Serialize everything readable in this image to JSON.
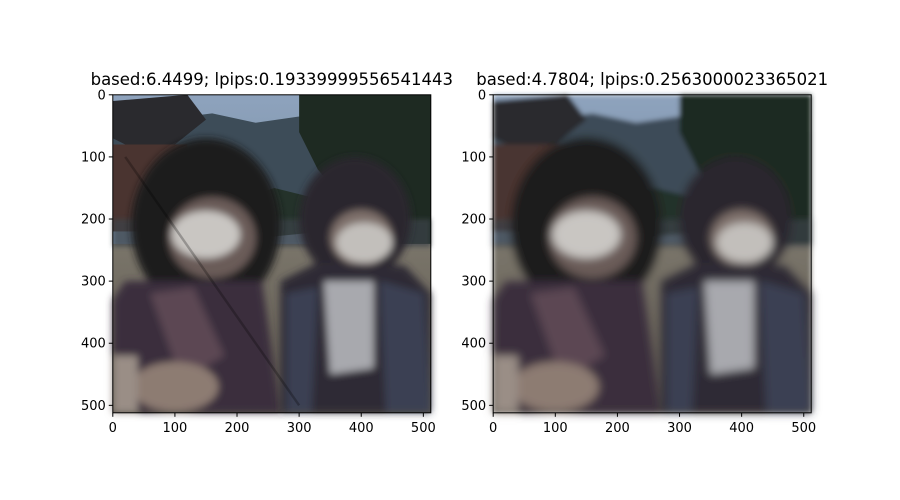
{
  "chart_data": [
    {
      "type": "image",
      "title": "based:6.4499; lpips:0.19339999556541443",
      "xlim": [
        0,
        512
      ],
      "ylim": [
        512,
        0
      ],
      "xticks": [
        0,
        100,
        200,
        300,
        400,
        500
      ],
      "yticks": [
        0,
        100,
        200,
        300,
        400,
        500
      ],
      "xtick_labels": [
        "0",
        "100",
        "200",
        "300",
        "400",
        "500"
      ],
      "ytick_labels": [
        "0",
        "100",
        "200",
        "300",
        "400",
        "500"
      ],
      "grid": false
    },
    {
      "type": "image",
      "title": "based:4.7804; lpips:0.2563000023365021",
      "xlim": [
        0,
        512
      ],
      "ylim": [
        512,
        0
      ],
      "xticks": [
        0,
        100,
        200,
        300,
        400,
        500
      ],
      "yticks": [
        0,
        100,
        200,
        300,
        400,
        500
      ],
      "xtick_labels": [
        "0",
        "100",
        "200",
        "300",
        "400",
        "500"
      ],
      "ytick_labels": [
        "0",
        "100",
        "200",
        "300",
        "400",
        "500"
      ],
      "grid": false
    }
  ],
  "colors": {
    "sky": "#7f94ad",
    "mountain": "#3a4a55",
    "trees": "#1e2a22",
    "ground": "#6e6a5e",
    "mask": "#c9c6c2",
    "hair": "#1c1a1f",
    "skin": "#8d7b72",
    "jacket": "#3b2f3d",
    "shirt": "#a8a9ae"
  }
}
